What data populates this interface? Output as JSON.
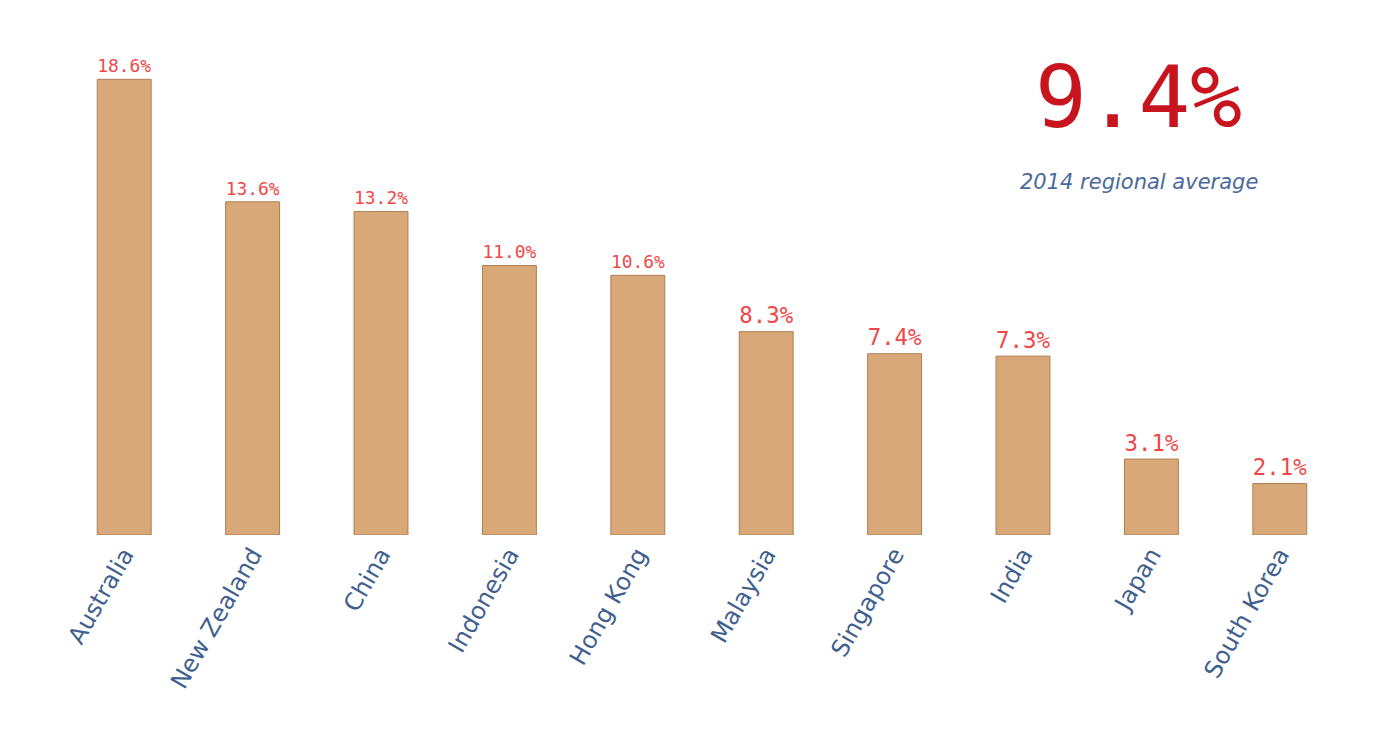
{
  "chart_data": {
    "type": "bar",
    "categories": [
      "Australia",
      "New Zealand",
      "China",
      "Indonesia",
      "Hong Kong",
      "Malaysia",
      "Singapore",
      "India",
      "Japan",
      "South Korea"
    ],
    "values": [
      18.6,
      13.6,
      13.2,
      11.0,
      10.6,
      8.3,
      7.4,
      7.3,
      3.1,
      2.1
    ],
    "value_labels": [
      "18.6%",
      "13.6%",
      "13.2%",
      "11.0%",
      "10.6%",
      "8.3%",
      "7.4%",
      "7.3%",
      "3.1%",
      "2.1%"
    ],
    "color": "#d8a878",
    "ylim": [
      0,
      20
    ],
    "grid": false,
    "data_labels": true,
    "tick_labels": "x",
    "annotations": [
      {
        "text": "9.4%"
      },
      {
        "text": "2014 regional average"
      }
    ]
  }
}
